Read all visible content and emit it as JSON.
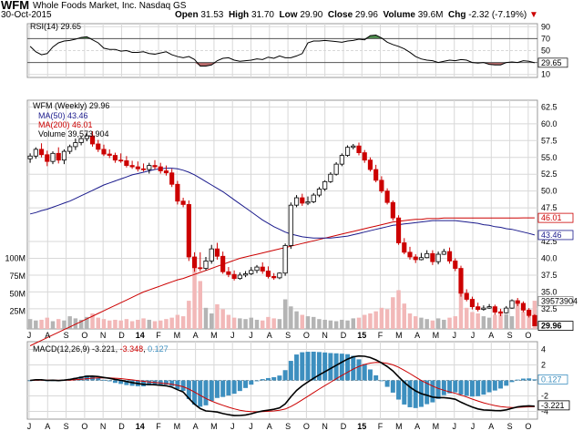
{
  "header": {
    "symbol": "WFM",
    "company": "Whole Foods Market, Inc.",
    "exchange": "Nasdaq GS",
    "date": "30-Oct-2015",
    "open_label": "Open",
    "open": "31.53",
    "high_label": "High",
    "high": "31.70",
    "low_label": "Low",
    "low": "29.90",
    "close_label": "Close",
    "close": "29.96",
    "volume_label": "Volume",
    "volume": "39.6M",
    "chg_label": "Chg",
    "chg": "-2.32 (-7.19%)"
  },
  "colors": {
    "up": "#000000",
    "down": "#cc0000",
    "ma50": "#1a1a8c",
    "ma200": "#cc0000",
    "vol_up": "#b4b4b4",
    "vol_down": "#f2b8b8",
    "rsi_over": "#4f8f4f",
    "rsi_under": "#b86a6a",
    "macd": "#000000",
    "signal": "#cc0000",
    "hist": "#3d8fbf",
    "grid": "#d8d8d8"
  },
  "chart_data": {
    "type": "candlestick",
    "title": "WFM (Weekly)",
    "price_label": "WFM (Weekly) 29.96",
    "ma50_label": "MA(50) 43.46",
    "ma200_label": "MA(200) 46.01",
    "volume_label": "Volume 39,573,904",
    "x_tick_labels": [
      "J",
      "A",
      "S",
      "O",
      "N",
      "D",
      "14",
      "F",
      "M",
      "A",
      "M",
      "J",
      "J",
      "A",
      "S",
      "O",
      "N",
      "D",
      "15",
      "F",
      "M",
      "A",
      "M",
      "J",
      "J",
      "A",
      "S",
      "O"
    ],
    "price_axis_ticks": [
      "62.5",
      "60.0",
      "57.5",
      "55.0",
      "52.5",
      "50.0",
      "47.5",
      "42.5",
      "40.0",
      "37.5",
      "35.0",
      "32.5"
    ],
    "price_ylim": [
      29.5,
      63.5
    ],
    "price_markers": {
      "ma200": "46.01",
      "ma50": "43.46",
      "volume": "39573904",
      "close": "29.96"
    },
    "volume_axis_ticks": [
      "100M",
      "75M",
      "50M",
      "25M"
    ],
    "volume_ylim": [
      0,
      110
    ],
    "rsi": {
      "label": "RSI(14) 29.65",
      "ticks": [
        "90",
        "70",
        "50",
        "30",
        "10"
      ],
      "value": "29.65",
      "ylim": [
        5,
        95
      ],
      "values": [
        57,
        48,
        43,
        45,
        56,
        63,
        66,
        67,
        69,
        72,
        73,
        68,
        63,
        54,
        52,
        52,
        49,
        50,
        47,
        47,
        48,
        45,
        44,
        46,
        48,
        43,
        40,
        38,
        40,
        35,
        24,
        24,
        26,
        33,
        37,
        38,
        34,
        32,
        33,
        34,
        36,
        35,
        39,
        37,
        41,
        38,
        38,
        41,
        45,
        63,
        66,
        66,
        67,
        66,
        65,
        64,
        66,
        67,
        69,
        68,
        75,
        76,
        71,
        64,
        60,
        57,
        53,
        47,
        40,
        36,
        34,
        33,
        30,
        32,
        34,
        33,
        35,
        34,
        30,
        29,
        30,
        27,
        26,
        26,
        30,
        31,
        30,
        33,
        32,
        29.65
      ]
    },
    "weekly": {
      "open": [
        54.8,
        55.2,
        56.2,
        55.4,
        54.4,
        55.6,
        54.6,
        55.9,
        56.6,
        57.2,
        57.8,
        58.2,
        57.0,
        56.2,
        55.5,
        55.3,
        54.6,
        54.5,
        53.8,
        53.6,
        53.3,
        53.2,
        53.8,
        53.6,
        53.0,
        52.7,
        51.0,
        48.5,
        48.0,
        40.2,
        38.6,
        38.5,
        39.6,
        41.4,
        40.3,
        38.0,
        37.6,
        37.0,
        37.5,
        37.7,
        38.2,
        38.7,
        38.1,
        37.3,
        37.1,
        37.8,
        41.9,
        47.9,
        49.0,
        48.2,
        48.4,
        49.4,
        50.3,
        51.4,
        52.5,
        54.0,
        55.3,
        56.5,
        56.7,
        55.7,
        54.6,
        53.2,
        51.6,
        50.0,
        48.3,
        46.0,
        42.3,
        40.9,
        40.2,
        39.8,
        40.1,
        40.7,
        39.5,
        40.6,
        41.0,
        39.6,
        38.5,
        34.8,
        33.9,
        32.8,
        32.4,
        32.6,
        32.8,
        32.0,
        31.9,
        32.6,
        33.7,
        33.3,
        32.3,
        31.5
      ],
      "high": [
        55.6,
        56.5,
        57.1,
        56.0,
        55.9,
        56.5,
        56.2,
        56.9,
        57.8,
        58.1,
        58.6,
        58.9,
        57.6,
        56.9,
        56.2,
        55.7,
        55.6,
        55.2,
        54.5,
        54.4,
        54.1,
        54.2,
        54.6,
        54.2,
        53.8,
        53.3,
        51.5,
        49.0,
        48.6,
        40.9,
        40.9,
        40.2,
        42.0,
        42.3,
        41.0,
        38.7,
        38.2,
        37.9,
        38.1,
        38.7,
        39.0,
        39.4,
        38.8,
        37.8,
        37.9,
        42.2,
        48.3,
        49.4,
        49.6,
        49.2,
        49.7,
        50.6,
        51.6,
        52.8,
        54.3,
        55.6,
        56.8,
        57.0,
        57.2,
        56.1,
        55.0,
        53.9,
        52.2,
        50.4,
        48.6,
        46.4,
        43.0,
        41.7,
        40.6,
        40.8,
        41.2,
        41.2,
        41.0,
        41.4,
        41.6,
        40.0,
        38.9,
        35.4,
        34.3,
        33.4,
        33.0,
        33.2,
        33.1,
        32.5,
        32.9,
        33.9,
        34.1,
        33.6,
        32.6,
        31.7
      ],
      "low": [
        54.2,
        54.8,
        55.0,
        53.7,
        54.0,
        54.1,
        54.0,
        55.5,
        56.1,
        56.8,
        57.4,
        56.6,
        55.8,
        55.2,
        54.9,
        54.2,
        54.2,
        53.5,
        53.3,
        52.9,
        52.9,
        52.6,
        53.2,
        52.6,
        52.3,
        50.6,
        48.0,
        47.6,
        39.6,
        38.0,
        38.1,
        38.2,
        39.2,
        39.8,
        37.7,
        37.2,
        36.7,
        36.8,
        37.2,
        37.5,
        37.8,
        37.7,
        37.0,
        36.8,
        36.9,
        37.4,
        41.4,
        47.6,
        47.8,
        47.9,
        48.2,
        49.1,
        50.0,
        51.2,
        52.3,
        53.7,
        55.1,
        56.2,
        55.3,
        54.2,
        52.9,
        51.3,
        49.7,
        48.0,
        45.6,
        42.0,
        40.6,
        39.8,
        39.3,
        39.7,
        40.0,
        39.0,
        39.1,
        40.5,
        39.2,
        38.1,
        34.3,
        33.6,
        32.4,
        32.1,
        32.2,
        32.5,
        31.6,
        31.4,
        31.8,
        32.5,
        32.9,
        32.0,
        31.2,
        29.9
      ],
      "close": [
        55.2,
        56.2,
        55.4,
        54.4,
        55.6,
        54.6,
        55.9,
        56.6,
        57.2,
        57.8,
        58.2,
        57.0,
        56.2,
        55.5,
        55.3,
        54.6,
        54.5,
        53.8,
        53.6,
        53.3,
        53.2,
        53.8,
        53.6,
        53.0,
        52.7,
        51.0,
        48.5,
        48.0,
        40.2,
        38.6,
        38.5,
        39.6,
        41.4,
        40.3,
        38.0,
        37.6,
        37.0,
        37.5,
        37.7,
        38.2,
        38.7,
        38.1,
        37.3,
        37.1,
        37.8,
        41.9,
        47.9,
        49.0,
        48.2,
        48.4,
        49.4,
        50.3,
        51.4,
        52.5,
        54.0,
        55.3,
        56.5,
        56.7,
        55.7,
        54.6,
        53.2,
        51.6,
        50.0,
        48.3,
        46.0,
        42.3,
        40.9,
        40.2,
        39.8,
        40.1,
        40.7,
        39.5,
        40.6,
        41.0,
        39.6,
        38.5,
        34.8,
        33.9,
        32.8,
        32.4,
        32.6,
        32.8,
        32.0,
        31.9,
        32.6,
        33.7,
        33.3,
        32.3,
        31.5,
        29.96
      ],
      "ma50": [
        46.6,
        46.8,
        47.1,
        47.3,
        47.6,
        47.9,
        48.2,
        48.5,
        48.9,
        49.3,
        49.7,
        50.1,
        50.5,
        50.9,
        51.2,
        51.5,
        51.8,
        52.1,
        52.4,
        52.6,
        52.8,
        53.0,
        53.2,
        53.3,
        53.4,
        53.4,
        53.3,
        53.1,
        52.8,
        52.4,
        51.9,
        51.4,
        50.9,
        50.4,
        49.9,
        49.3,
        48.7,
        48.1,
        47.5,
        46.9,
        46.3,
        45.7,
        45.2,
        44.7,
        44.3,
        43.9,
        43.6,
        43.4,
        43.2,
        43.1,
        43.0,
        43.0,
        43.0,
        43.0,
        43.1,
        43.2,
        43.3,
        43.5,
        43.7,
        43.9,
        44.1,
        44.3,
        44.5,
        44.7,
        44.9,
        45.0,
        45.1,
        45.2,
        45.3,
        45.4,
        45.5,
        45.6,
        45.6,
        45.6,
        45.6,
        45.6,
        45.5,
        45.4,
        45.3,
        45.2,
        45.0,
        44.9,
        44.7,
        44.6,
        44.4,
        44.3,
        44.1,
        43.9,
        43.7,
        43.46
      ],
      "ma200": [
        27.0,
        27.4,
        27.8,
        28.2,
        28.6,
        29.0,
        29.4,
        29.8,
        30.2,
        30.6,
        31.0,
        31.4,
        31.8,
        32.2,
        32.6,
        33.0,
        33.4,
        33.8,
        34.2,
        34.6,
        35.0,
        35.3,
        35.6,
        35.9,
        36.2,
        36.5,
        36.8,
        37.0,
        37.3,
        37.6,
        37.9,
        38.2,
        38.5,
        38.8,
        39.1,
        39.4,
        39.7,
        40.0,
        40.2,
        40.4,
        40.6,
        40.8,
        41.0,
        41.2,
        41.4,
        41.6,
        41.8,
        42.0,
        42.2,
        42.4,
        42.6,
        42.8,
        43.0,
        43.2,
        43.4,
        43.6,
        43.8,
        44.0,
        44.2,
        44.4,
        44.6,
        44.8,
        45.0,
        45.2,
        45.4,
        45.5,
        45.6,
        45.7,
        45.8,
        45.8,
        45.9,
        45.9,
        45.9,
        46.0,
        46.0,
        46.0,
        46.0,
        46.0,
        46.0,
        46.0,
        46.0,
        46.0,
        46.0,
        46.0,
        46.0,
        46.0,
        46.0,
        46.01,
        46.01,
        46.01
      ],
      "volume": [
        14,
        12,
        13,
        16,
        11,
        14,
        12,
        18,
        15,
        13,
        17,
        22,
        16,
        14,
        12,
        13,
        12,
        14,
        11,
        13,
        15,
        13,
        11,
        12,
        14,
        16,
        20,
        18,
        40,
        88,
        68,
        30,
        22,
        35,
        28,
        20,
        16,
        15,
        14,
        16,
        13,
        12,
        17,
        15,
        14,
        42,
        32,
        25,
        20,
        18,
        17,
        14,
        13,
        12,
        11,
        13,
        12,
        15,
        16,
        20,
        22,
        25,
        30,
        28,
        45,
        55,
        36,
        22,
        18,
        16,
        14,
        12,
        15,
        13,
        16,
        18,
        50,
        30,
        24,
        22,
        18,
        16,
        20,
        26,
        21,
        18,
        38,
        25,
        22,
        40
      ]
    },
    "macd": {
      "label": "MACD(12,26,9)",
      "macd_value": "-3.221",
      "signal_value": "-3.348",
      "hist_value": "0.127",
      "ticks": [
        "4",
        "2",
        "0",
        "-2",
        "-4"
      ],
      "marker_hist": "0.127",
      "marker_macd": "-3.221",
      "ylim": [
        -5,
        5
      ]
    }
  }
}
